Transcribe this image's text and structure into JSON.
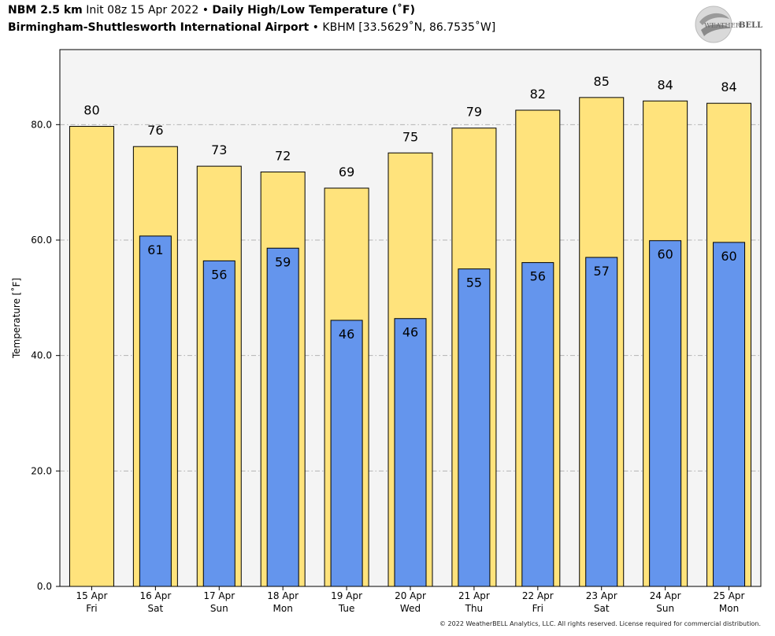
{
  "header": {
    "model": "NBM 2.5 km",
    "init": "Init 08z 15 Apr 2022",
    "title": "Daily High/Low Temperature (˚F)",
    "station_name": "Birmingham-Shuttlesworth International Airport",
    "station_info": "KBHM [33.5629˚N, 86.7535˚W]",
    "separator": " • "
  },
  "logo": {
    "text_a": "WEATHER",
    "text_b": "BELL"
  },
  "credit": "© 2022 WeatherBELL Analytics, LLC. All rights reserved. License required for commercial distribution.",
  "colors": {
    "high": "#FFE37C",
    "low": "#6495ED",
    "plot_bg": "#F4F4F4"
  },
  "chart_data": {
    "type": "bar",
    "ylabel": "Temperature [˚F]",
    "ylim": [
      0,
      93
    ],
    "yticks": [
      "0.0",
      "20.0",
      "40.0",
      "60.0",
      "80.0"
    ],
    "grid": true,
    "categories": [
      [
        "15 Apr",
        "Fri"
      ],
      [
        "16 Apr",
        "Sat"
      ],
      [
        "17 Apr",
        "Sun"
      ],
      [
        "18 Apr",
        "Mon"
      ],
      [
        "19 Apr",
        "Tue"
      ],
      [
        "20 Apr",
        "Wed"
      ],
      [
        "21 Apr",
        "Thu"
      ],
      [
        "22 Apr",
        "Fri"
      ],
      [
        "23 Apr",
        "Sat"
      ],
      [
        "24 Apr",
        "Sun"
      ],
      [
        "25 Apr",
        "Mon"
      ]
    ],
    "high_values": [
      79.7,
      76.2,
      72.8,
      71.8,
      69.0,
      75.1,
      79.4,
      82.5,
      84.7,
      84.1,
      83.7
    ],
    "high_labels": [
      "80",
      "76",
      "73",
      "72",
      "69",
      "75",
      "79",
      "82",
      "85",
      "84",
      "84"
    ],
    "low_values": [
      null,
      60.7,
      56.4,
      58.6,
      46.1,
      46.4,
      55.0,
      56.1,
      57.0,
      59.9,
      59.6
    ],
    "low_labels": [
      "",
      "61",
      "56",
      "59",
      "46",
      "46",
      "55",
      "56",
      "57",
      "60",
      "60"
    ]
  }
}
